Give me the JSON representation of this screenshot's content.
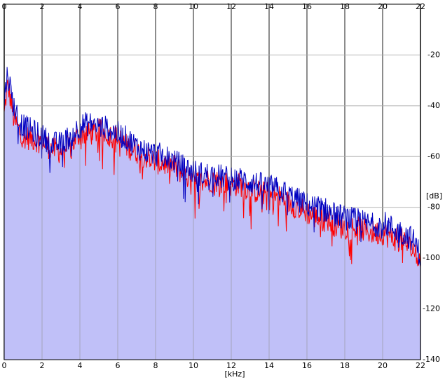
{
  "chart_data": {
    "type": "area",
    "xlabel": "[kHz]",
    "ylabel": "[dB]",
    "xlim": [
      0,
      22
    ],
    "ylim": [
      -140,
      0
    ],
    "x_ticks": [
      0,
      2,
      4,
      6,
      8,
      10,
      12,
      14,
      16,
      18,
      20,
      22
    ],
    "y_ticks": [
      -20,
      -40,
      -60,
      -80,
      -100,
      -120,
      -140
    ],
    "grid": true,
    "colors": {
      "fill": "#c0c0f8",
      "grid": "#8c8c8c",
      "red": "#ff0000",
      "blue": "#0000c0"
    },
    "series": [
      {
        "color": "red",
        "x": [
          0,
          0.1,
          0.2,
          0.3,
          0.5,
          0.8,
          1,
          1.5,
          2,
          2.5,
          3,
          3.5,
          4,
          4.5,
          5,
          5.5,
          6,
          6.5,
          7,
          7.5,
          8,
          8.5,
          9,
          9.5,
          10,
          10.5,
          11,
          11.5,
          12,
          12.5,
          13,
          13.5,
          14,
          14.5,
          15,
          15.5,
          16,
          16.5,
          17,
          17.5,
          18,
          18.5,
          19,
          19.5,
          20,
          20.5,
          21,
          21.5,
          21.8,
          22
        ],
        "values": [
          -44,
          -36,
          -32,
          -36,
          -45,
          -50,
          -52,
          -53,
          -54,
          -57,
          -58,
          -56,
          -51,
          -51,
          -50,
          -51,
          -53,
          -56,
          -58,
          -60,
          -62,
          -63,
          -64,
          -67,
          -70,
          -70,
          -69,
          -70,
          -71,
          -71,
          -73,
          -74,
          -75,
          -76,
          -78,
          -80,
          -82,
          -84,
          -84,
          -87,
          -88,
          -88,
          -89,
          -90,
          -90,
          -92,
          -93,
          -96,
          -98,
          -102
        ]
      },
      {
        "color": "blue",
        "x": [
          0,
          0.1,
          0.2,
          0.3,
          0.5,
          0.8,
          1,
          1.5,
          2,
          2.5,
          3,
          3.5,
          4,
          4.5,
          5,
          5.5,
          6,
          6.5,
          7,
          7.5,
          8,
          8.5,
          9,
          9.5,
          10,
          10.5,
          11,
          11.5,
          12,
          12.5,
          13,
          13.5,
          14,
          14.5,
          15,
          15.5,
          16,
          16.5,
          17,
          17.5,
          18,
          18.5,
          19,
          19.5,
          20,
          20.5,
          21,
          21.5,
          21.8,
          22
        ],
        "values": [
          -40,
          -30,
          -27,
          -32,
          -40,
          -46,
          -48,
          -50,
          -52,
          -55,
          -55,
          -52,
          -48,
          -47,
          -48,
          -49,
          -51,
          -53,
          -56,
          -58,
          -59,
          -60,
          -62,
          -64,
          -66,
          -67,
          -67,
          -68,
          -69,
          -69,
          -70,
          -71,
          -72,
          -73,
          -75,
          -77,
          -79,
          -80,
          -81,
          -83,
          -84,
          -85,
          -86,
          -87,
          -86,
          -88,
          -90,
          -92,
          -95,
          -100
        ]
      }
    ]
  }
}
